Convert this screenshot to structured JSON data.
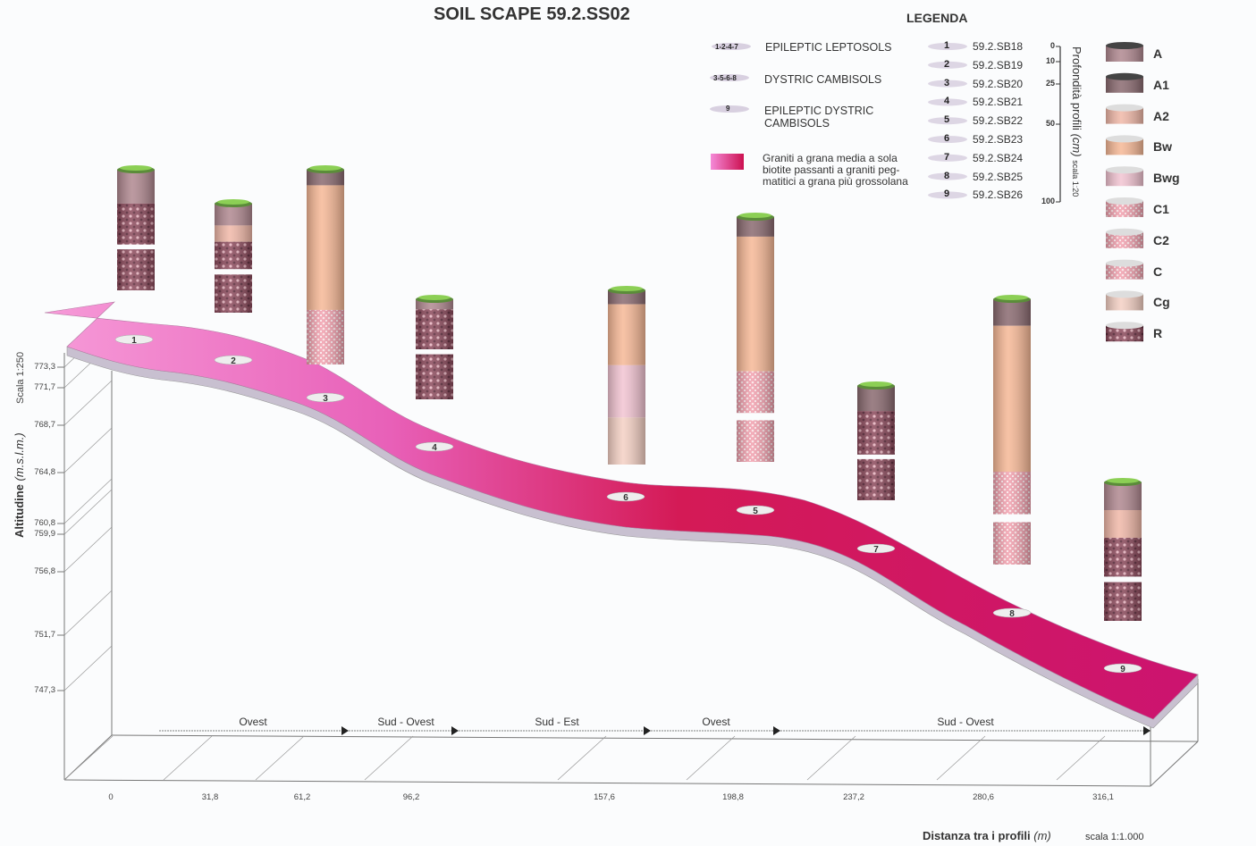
{
  "title": "SOIL SCAPE 59.2.SS02",
  "legend": {
    "title": "LEGENDA",
    "soil_types": [
      {
        "marker": "1-2-4-7",
        "label": "EPILEPTIC LEPTOSOLS"
      },
      {
        "marker": "3-5-6-8",
        "label": "DYSTRIC CAMBISOLS"
      },
      {
        "marker": "9",
        "label": "EPILEPTIC DYSTRIC CAMBISOLS"
      }
    ],
    "bedrock": {
      "label": "Graniti a grana media a sola biotite passanti a graniti peg-matitici a grana più grossolana",
      "color": "#d0206a"
    },
    "profiles": [
      {
        "n": "1",
        "code": "59.2.SB18"
      },
      {
        "n": "2",
        "code": "59.2.SB19"
      },
      {
        "n": "3",
        "code": "59.2.SB20"
      },
      {
        "n": "4",
        "code": "59.2.SB21"
      },
      {
        "n": "5",
        "code": "59.2.SB22"
      },
      {
        "n": "6",
        "code": "59.2.SB23"
      },
      {
        "n": "7",
        "code": "59.2.SB24"
      },
      {
        "n": "8",
        "code": "59.2.SB25"
      },
      {
        "n": "9",
        "code": "59.2.SB26"
      }
    ],
    "depth_scale": {
      "label": "Profondità profili",
      "unit": "(cm)",
      "scale": "scala 1:20",
      "ticks": [
        "0",
        "10",
        "25",
        "50",
        "100"
      ]
    },
    "horizons": [
      {
        "code": "A",
        "color": "#b08890"
      },
      {
        "code": "A1",
        "color": "#8a6a70"
      },
      {
        "code": "A2",
        "color": "#f0b8a8"
      },
      {
        "code": "Bw",
        "color": "#f6b896"
      },
      {
        "code": "Bwg",
        "color": "#f2c4d2"
      },
      {
        "code": "C1",
        "color": "#f0b4b8"
      },
      {
        "code": "C2",
        "color": "#f4a6ae"
      },
      {
        "code": "C",
        "color": "#f29cac"
      },
      {
        "code": "Cg",
        "color": "#f4d0c4"
      },
      {
        "code": "R",
        "color": "#8c4a5c"
      }
    ]
  },
  "y_axis": {
    "label": "Altitudine",
    "unit": "(m.s.l.m.)",
    "scale": "Scala 1:250",
    "ticks": [
      "773,3",
      "771,7",
      "768,7",
      "764,8",
      "760,8",
      "759,9",
      "756,8",
      "751,7",
      "747,3"
    ]
  },
  "x_axis": {
    "label": "Distanza tra i profili",
    "unit": "(m)",
    "scale": "scala 1:1.000",
    "ticks": [
      "0",
      "31,8",
      "61,2",
      "96,2",
      "157,6",
      "198,8",
      "237,2",
      "280,6",
      "316,1"
    ]
  },
  "directions": [
    "Ovest",
    "Sud - Ovest",
    "Sud - Est",
    "Ovest",
    "Sud - Ovest"
  ],
  "profiles_on_transect": [
    {
      "n": "1",
      "horizons": [
        [
          "A",
          0.28
        ],
        [
          "R",
          0.34
        ],
        [
          "gap",
          0.04
        ],
        [
          "R",
          0.34
        ]
      ]
    },
    {
      "n": "2",
      "horizons": [
        [
          "A",
          0.2
        ],
        [
          "A2",
          0.15
        ],
        [
          "R",
          0.25
        ],
        [
          "gap",
          0.05
        ],
        [
          "R",
          0.35
        ]
      ]
    },
    {
      "n": "3",
      "horizons": [
        [
          "A1",
          0.08
        ],
        [
          "Bw",
          0.64
        ],
        [
          "C1",
          0.1
        ],
        [
          "C",
          0.18
        ]
      ]
    },
    {
      "n": "4",
      "horizons": [
        [
          "A",
          0.1
        ],
        [
          "R",
          0.4
        ],
        [
          "gap",
          0.05
        ],
        [
          "R",
          0.45
        ]
      ]
    },
    {
      "n": "6",
      "horizons": [
        [
          "A1",
          0.08
        ],
        [
          "Bw",
          0.35
        ],
        [
          "Bwg",
          0.3
        ],
        [
          "Cg",
          0.27
        ]
      ]
    },
    {
      "n": "5",
      "horizons": [
        [
          "A1",
          0.08
        ],
        [
          "Bw",
          0.55
        ],
        [
          "C",
          0.17
        ],
        [
          "gap",
          0.03
        ],
        [
          "C",
          0.17
        ]
      ]
    },
    {
      "n": "7",
      "horizons": [
        [
          "A1",
          0.22
        ],
        [
          "R",
          0.38
        ],
        [
          "gap",
          0.04
        ],
        [
          "R",
          0.36
        ]
      ]
    },
    {
      "n": "8",
      "horizons": [
        [
          "A1",
          0.1
        ],
        [
          "Bw",
          0.55
        ],
        [
          "C",
          0.16
        ],
        [
          "gap",
          0.03
        ],
        [
          "C",
          0.16
        ]
      ]
    },
    {
      "n": "9",
      "horizons": [
        [
          "A",
          0.2
        ],
        [
          "A2",
          0.2
        ],
        [
          "R",
          0.28
        ],
        [
          "gap",
          0.04
        ],
        [
          "R",
          0.28
        ]
      ]
    }
  ]
}
